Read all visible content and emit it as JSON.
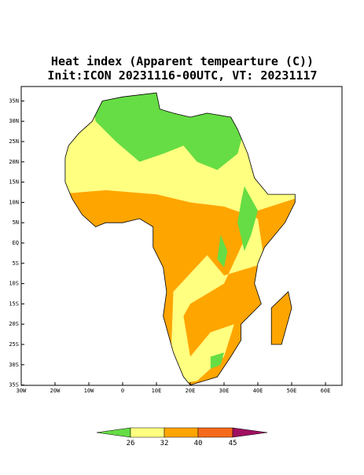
{
  "title": {
    "line1": "Heat index (Apparent tempearture (C))",
    "line2": "Init:ICON 20231116-00UTC, VT: 20231117"
  },
  "map": {
    "lat_labels": [
      "35N",
      "30N",
      "25N",
      "20N",
      "15N",
      "10N",
      "5N",
      "EQ",
      "5S",
      "10S",
      "15S",
      "20S",
      "25S",
      "30S",
      "35S"
    ],
    "lon_labels": [
      "30W",
      "20W",
      "10W",
      "0",
      "10E",
      "20E",
      "30E",
      "40E",
      "50E",
      "60E"
    ]
  },
  "colorbar": {
    "ticks": [
      26,
      32,
      40,
      45
    ],
    "colors": [
      "#66dd44",
      "#ffff80",
      "#ffa500",
      "#f56a1a",
      "#a01060"
    ]
  }
}
